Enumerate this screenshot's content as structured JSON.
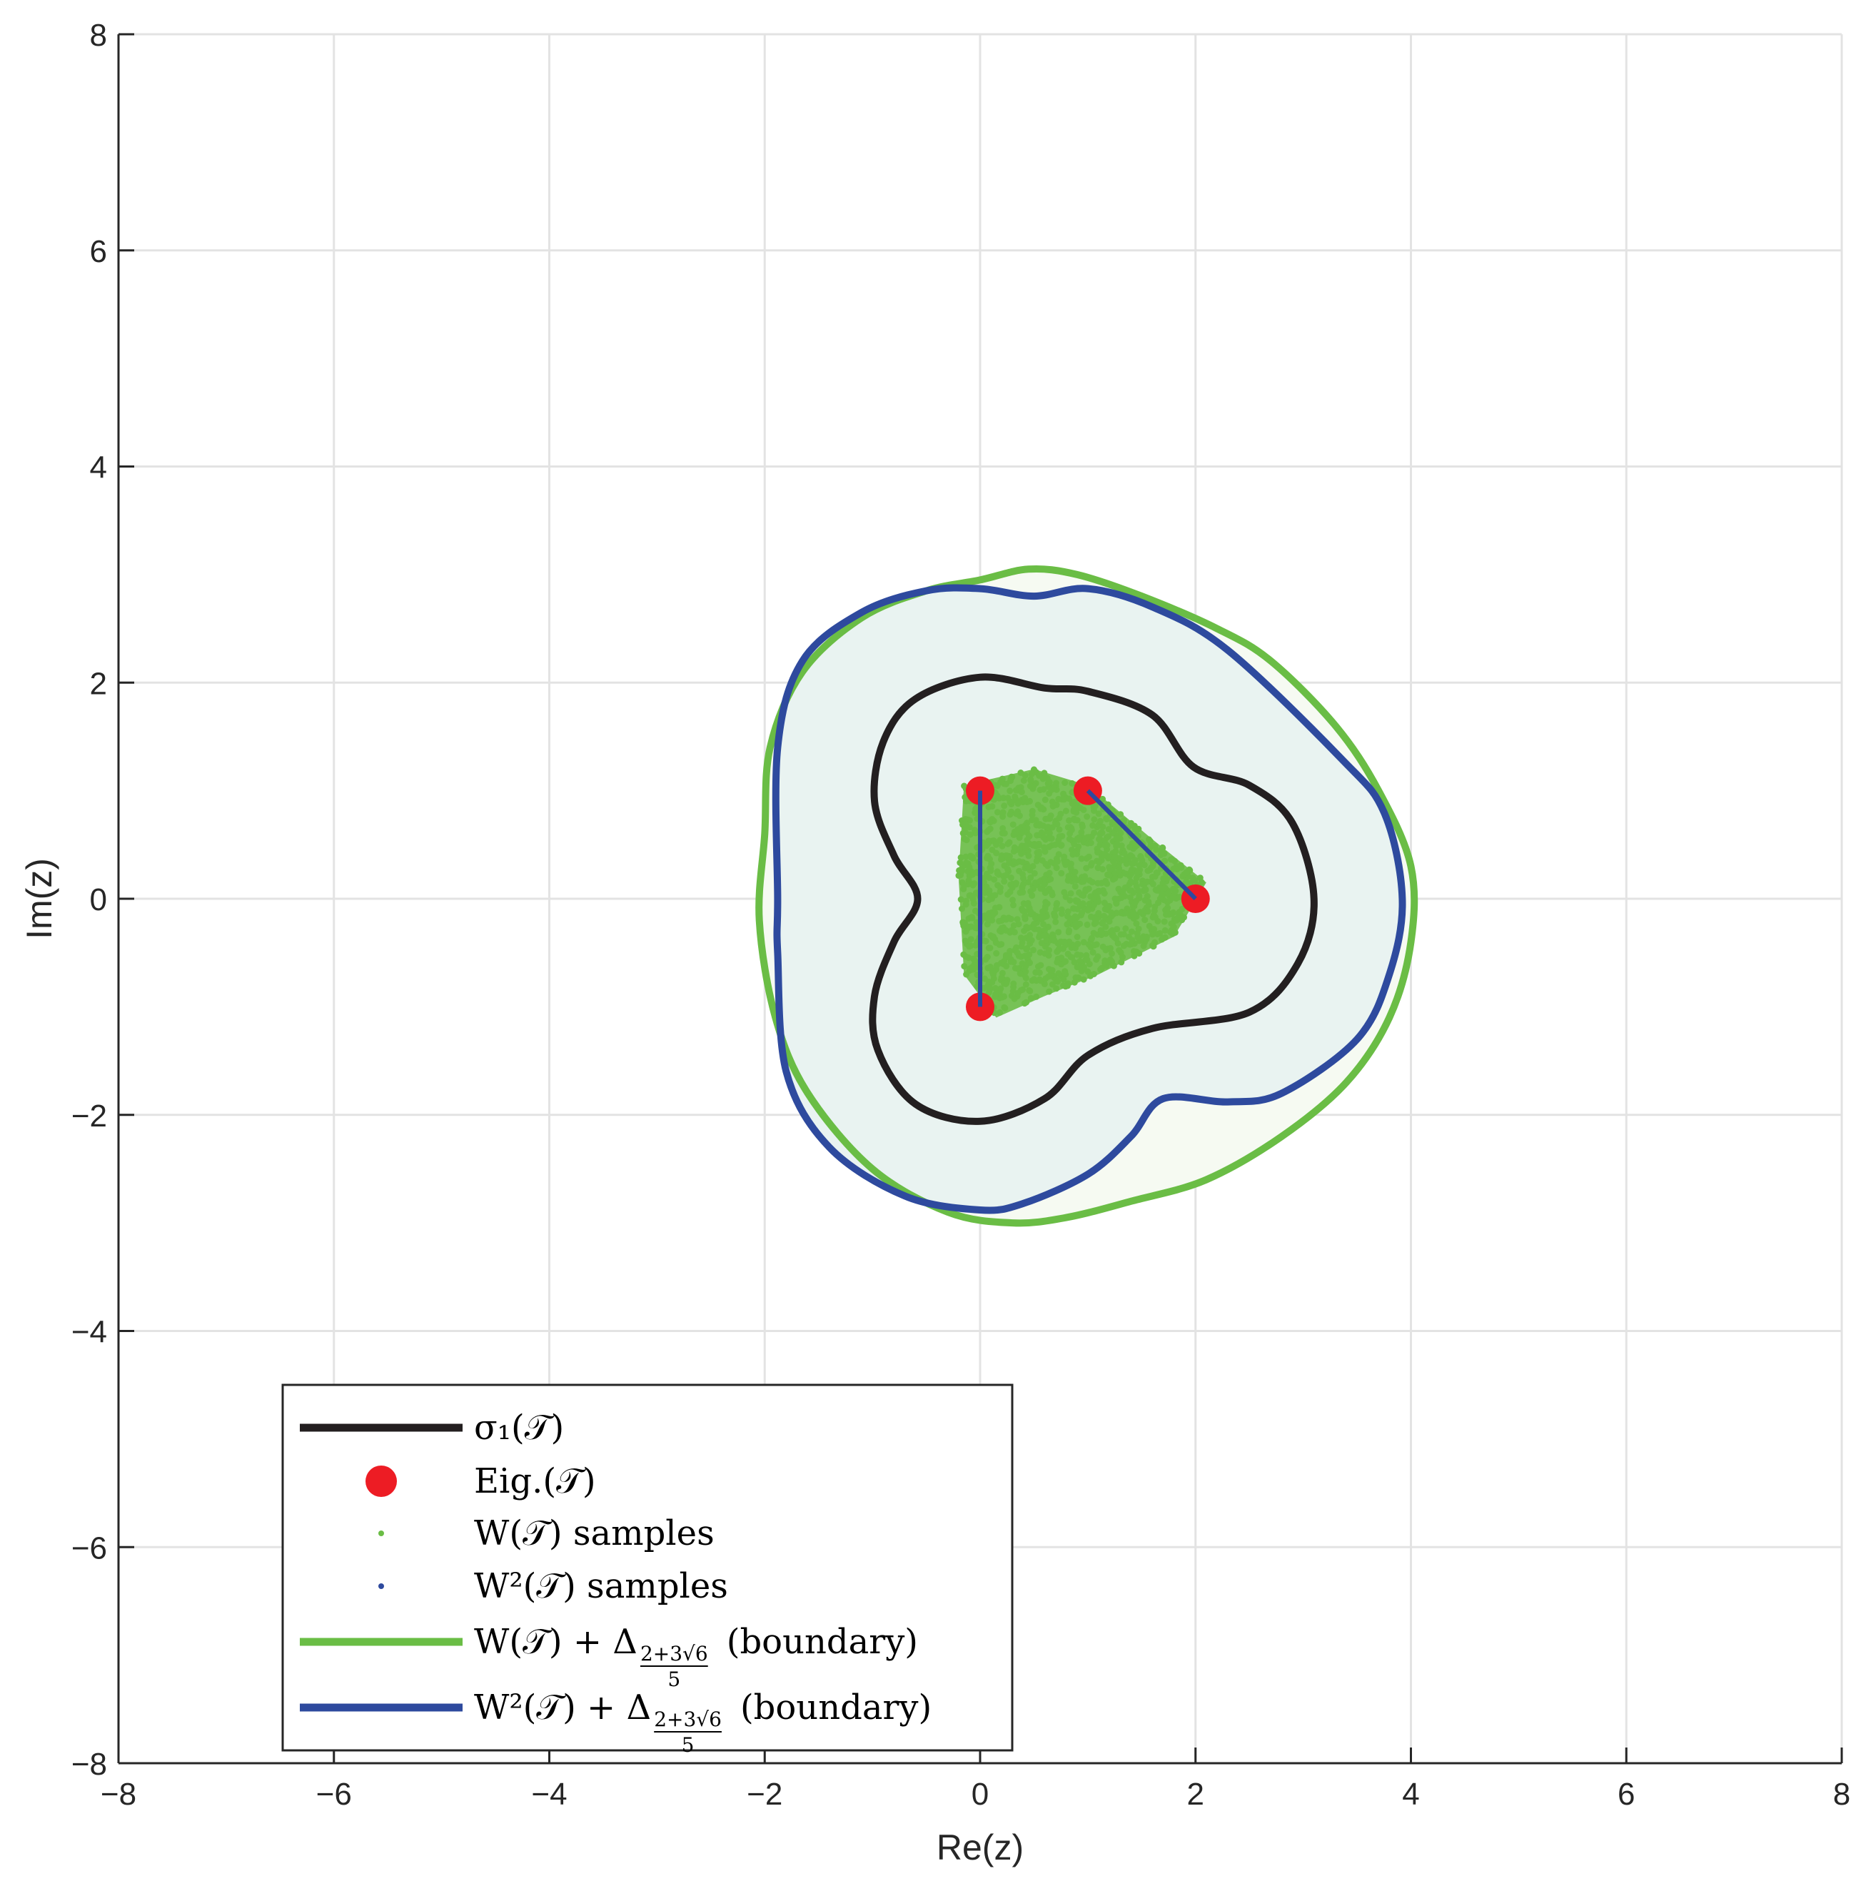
{
  "chart_data": {
    "type": "scatter",
    "title": "",
    "xlabel": "Re(z)",
    "ylabel": "Im(z)",
    "xlim": [
      -8,
      8
    ],
    "ylim": [
      -8,
      8
    ],
    "xticks": [
      -8,
      -6,
      -4,
      -2,
      0,
      2,
      4,
      6,
      8
    ],
    "yticks": [
      -8,
      -6,
      -4,
      -2,
      0,
      2,
      4,
      6,
      8
    ],
    "xtick_labels": [
      "−8",
      "−6",
      "−4",
      "−2",
      "0",
      "2",
      "4",
      "6",
      "8"
    ],
    "ytick_labels": [
      "−8",
      "−6",
      "−4",
      "−2",
      "0",
      "2",
      "4",
      "6",
      "8"
    ],
    "grid": true,
    "legend_position": "bottom-left",
    "colors": {
      "sigma": "#231f20",
      "eig": "#ed1c24",
      "w_samples": "#6abd45",
      "w2_samples": "#2e4a9e",
      "w_boundary": "#6abd45",
      "w2_boundary": "#2e4a9e",
      "fill": "#e9f3f1",
      "grid": "#e3e3e3",
      "axis": "#262626"
    },
    "eigenvalues": [
      {
        "re": 0,
        "im": 1
      },
      {
        "re": 1,
        "im": 1
      },
      {
        "re": 2,
        "im": 0
      },
      {
        "re": 0,
        "im": -1
      }
    ],
    "w2_samples_segments": [
      [
        [
          0,
          1
        ],
        [
          0,
          -1
        ]
      ],
      [
        [
          1,
          1
        ],
        [
          2,
          0
        ]
      ]
    ],
    "w_samples_region": [
      [
        -0.15,
        1.05
      ],
      [
        0.5,
        1.2
      ],
      [
        1.0,
        1.05
      ],
      [
        1.6,
        0.55
      ],
      [
        2.1,
        0.15
      ],
      [
        1.8,
        -0.35
      ],
      [
        1.1,
        -0.7
      ],
      [
        0.6,
        -0.9
      ],
      [
        0.15,
        -1.1
      ],
      [
        -0.15,
        -0.7
      ],
      [
        -0.2,
        0.2
      ]
    ],
    "sigma1_boundary": [
      [
        0.0,
        2.05
      ],
      [
        0.6,
        1.95
      ],
      [
        1.0,
        1.92
      ],
      [
        1.6,
        1.7
      ],
      [
        1.98,
        1.22
      ],
      [
        2.5,
        1.05
      ],
      [
        2.9,
        0.7
      ],
      [
        3.1,
        0.0
      ],
      [
        2.95,
        -0.6
      ],
      [
        2.5,
        -1.05
      ],
      [
        1.6,
        -1.2
      ],
      [
        1.0,
        -1.45
      ],
      [
        0.6,
        -1.85
      ],
      [
        0.0,
        -2.06
      ],
      [
        -0.6,
        -1.9
      ],
      [
        -0.95,
        -1.4
      ],
      [
        -0.98,
        -0.9
      ],
      [
        -0.8,
        -0.4
      ],
      [
        -0.58,
        0.0
      ],
      [
        -0.8,
        0.4
      ],
      [
        -0.98,
        0.9
      ],
      [
        -0.9,
        1.45
      ],
      [
        -0.6,
        1.85
      ],
      [
        0.0,
        2.05
      ]
    ],
    "w_boundary": [
      [
        0.0,
        2.95
      ],
      [
        0.45,
        3.05
      ],
      [
        0.9,
        3.0
      ],
      [
        1.5,
        2.8
      ],
      [
        2.2,
        2.5
      ],
      [
        2.7,
        2.2
      ],
      [
        3.3,
        1.6
      ],
      [
        3.7,
        1.0
      ],
      [
        4.0,
        0.3
      ],
      [
        4.0,
        -0.4
      ],
      [
        3.8,
        -1.1
      ],
      [
        3.4,
        -1.7
      ],
      [
        2.8,
        -2.2
      ],
      [
        2.1,
        -2.6
      ],
      [
        1.4,
        -2.8
      ],
      [
        0.8,
        -2.95
      ],
      [
        0.3,
        -3.0
      ],
      [
        -0.3,
        -2.9
      ],
      [
        -1.0,
        -2.5
      ],
      [
        -1.6,
        -1.8
      ],
      [
        -1.9,
        -1.1
      ],
      [
        -2.05,
        -0.2
      ],
      [
        -2.0,
        0.6
      ],
      [
        -1.95,
        1.4
      ],
      [
        -1.65,
        2.1
      ],
      [
        -1.1,
        2.6
      ],
      [
        -0.5,
        2.85
      ],
      [
        0.0,
        2.95
      ]
    ],
    "w2_boundary": [
      [
        0.0,
        2.87
      ],
      [
        0.5,
        2.8
      ],
      [
        1.0,
        2.87
      ],
      [
        1.6,
        2.7
      ],
      [
        2.3,
        2.3
      ],
      [
        3.35,
        1.3
      ],
      [
        3.75,
        0.8
      ],
      [
        3.92,
        0.0
      ],
      [
        3.8,
        -0.7
      ],
      [
        3.5,
        -1.3
      ],
      [
        2.8,
        -1.8
      ],
      [
        2.3,
        -1.88
      ],
      [
        1.7,
        -1.85
      ],
      [
        1.4,
        -2.2
      ],
      [
        1.0,
        -2.55
      ],
      [
        0.4,
        -2.82
      ],
      [
        0.0,
        -2.88
      ],
      [
        -0.7,
        -2.75
      ],
      [
        -1.4,
        -2.3
      ],
      [
        -1.8,
        -1.6
      ],
      [
        -1.88,
        -0.5
      ],
      [
        -1.88,
        0.0
      ],
      [
        -1.88,
        1.4
      ],
      [
        -1.65,
        2.2
      ],
      [
        -1.1,
        2.65
      ],
      [
        -0.5,
        2.85
      ],
      [
        0.0,
        2.87
      ]
    ],
    "legend": [
      {
        "kind": "line",
        "color": "#231f20",
        "text": "σ₁(𝒯)"
      },
      {
        "kind": "marker",
        "color": "#ed1c24",
        "text": "Eig.(𝒯)"
      },
      {
        "kind": "dot",
        "color": "#6abd45",
        "text": "W(𝒯) samples"
      },
      {
        "kind": "dot",
        "color": "#2e4a9e",
        "text": "W²(𝒯) samples"
      },
      {
        "kind": "line",
        "color": "#6abd45",
        "text": "W(𝒯) + Δ",
        "sub_num": "2+3√6",
        "sub_den": "5",
        "tail": "(boundary)"
      },
      {
        "kind": "line",
        "color": "#2e4a9e",
        "text": "W²(𝒯) + Δ",
        "sub_num": "2+3√6",
        "sub_den": "5",
        "tail": "(boundary)"
      }
    ]
  }
}
